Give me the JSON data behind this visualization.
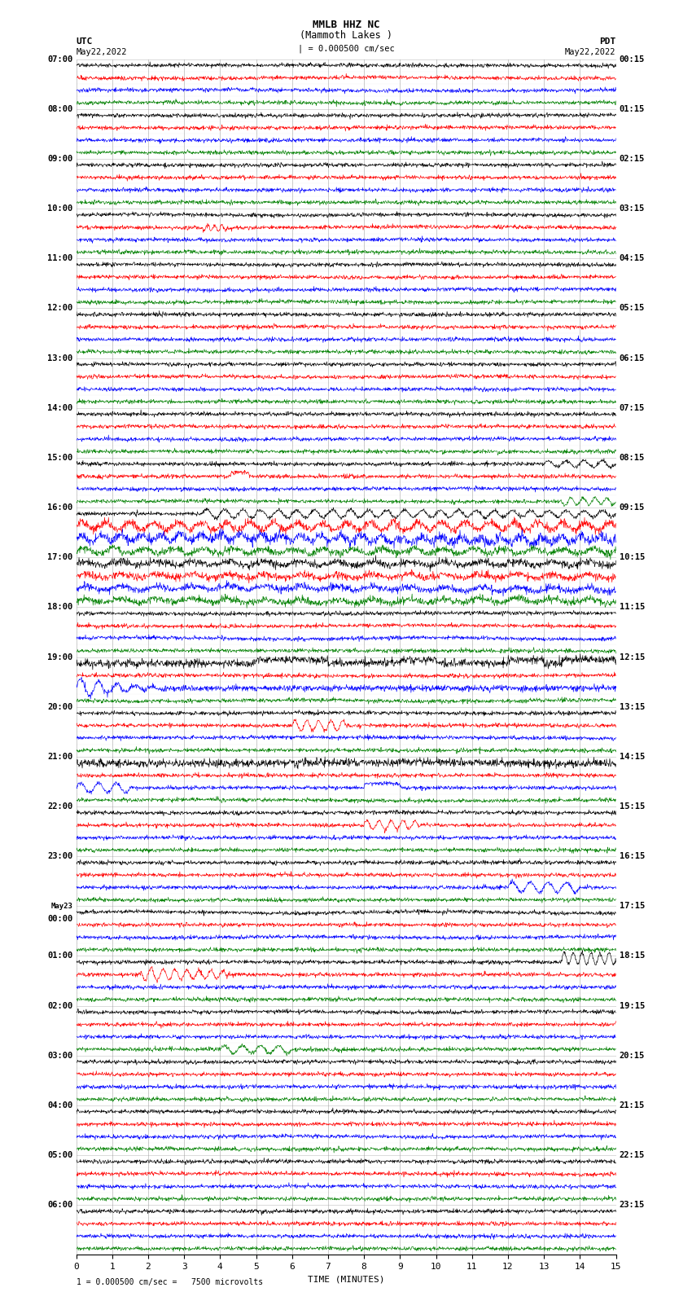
{
  "title_line1": "MMLB HHZ NC",
  "title_line2": "(Mammoth Lakes )",
  "title_line3": "| = 0.000500 cm/sec",
  "left_label_top": "UTC",
  "left_label_date": "May22,2022",
  "right_label_top": "PDT",
  "right_label_date": "May22,2022",
  "bottom_label": "TIME (MINUTES)",
  "footnote": "1 = 0.000500 cm/sec =   7500 microvolts",
  "utc_times": [
    "07:00",
    "",
    "",
    "",
    "08:00",
    "",
    "",
    "",
    "09:00",
    "",
    "",
    "",
    "10:00",
    "",
    "",
    "",
    "11:00",
    "",
    "",
    "",
    "12:00",
    "",
    "",
    "",
    "13:00",
    "",
    "",
    "",
    "14:00",
    "",
    "",
    "",
    "15:00",
    "",
    "",
    "",
    "16:00",
    "",
    "",
    "",
    "17:00",
    "",
    "",
    "",
    "18:00",
    "",
    "",
    "",
    "19:00",
    "",
    "",
    "",
    "20:00",
    "",
    "",
    "",
    "21:00",
    "",
    "",
    "",
    "22:00",
    "",
    "",
    "",
    "23:00",
    "",
    "",
    "",
    "May23",
    "00:00",
    "",
    "",
    "01:00",
    "",
    "",
    "",
    "02:00",
    "",
    "",
    "",
    "03:00",
    "",
    "",
    "",
    "04:00",
    "",
    "",
    "",
    "05:00",
    "",
    "",
    "",
    "06:00",
    "",
    "",
    ""
  ],
  "pdt_times": [
    "00:15",
    "",
    "",
    "",
    "01:15",
    "",
    "",
    "",
    "02:15",
    "",
    "",
    "",
    "03:15",
    "",
    "",
    "",
    "04:15",
    "",
    "",
    "",
    "05:15",
    "",
    "",
    "",
    "06:15",
    "",
    "",
    "",
    "07:15",
    "",
    "",
    "",
    "08:15",
    "",
    "",
    "",
    "09:15",
    "",
    "",
    "",
    "10:15",
    "",
    "",
    "",
    "11:15",
    "",
    "",
    "",
    "12:15",
    "",
    "",
    "",
    "13:15",
    "",
    "",
    "",
    "14:15",
    "",
    "",
    "",
    "15:15",
    "",
    "",
    "",
    "16:15",
    "",
    "",
    "",
    "17:15",
    "",
    "",
    "",
    "18:15",
    "",
    "",
    "",
    "19:15",
    "",
    "",
    "",
    "20:15",
    "",
    "",
    "",
    "21:15",
    "",
    "",
    "",
    "22:15",
    "",
    "",
    "",
    "23:15",
    "",
    "",
    ""
  ],
  "trace_colors": [
    "black",
    "red",
    "blue",
    "green"
  ],
  "n_traces": 96,
  "x_min": 0,
  "x_max": 15,
  "x_ticks": [
    0,
    1,
    2,
    3,
    4,
    5,
    6,
    7,
    8,
    9,
    10,
    11,
    12,
    13,
    14,
    15
  ],
  "background_color": "white",
  "grid_color": "#999999"
}
